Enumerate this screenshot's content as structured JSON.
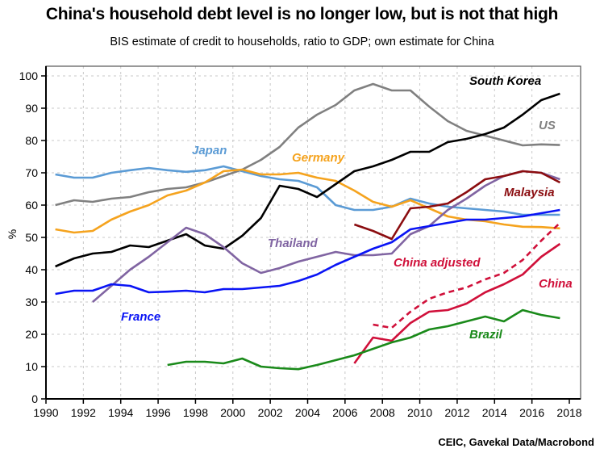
{
  "chart_data": {
    "type": "line",
    "title": "China's household debt level is no longer low, but is not that high",
    "subtitle": "BIS estimate of credit to households, ratio to GDP; own estimate for China",
    "source": "CEIC, Gavekal Data/Macrobond",
    "ylabel": "%",
    "xlabel": "",
    "xlim": [
      1990,
      2018
    ],
    "ylim": [
      0,
      100
    ],
    "x_ticks": [
      "1990",
      "1992",
      "1994",
      "1996",
      "1998",
      "2000",
      "2002",
      "2004",
      "2006",
      "2008",
      "2010",
      "2012",
      "2014",
      "2016",
      "2018"
    ],
    "y_ticks": [
      "0",
      "10",
      "20",
      "30",
      "40",
      "50",
      "60",
      "70",
      "80",
      "90",
      "100"
    ],
    "grid": true,
    "legend": "inline labels",
    "series": [
      {
        "name": "US",
        "color": "#808080",
        "dashed": false,
        "x_start": 1990.5,
        "values": [
          60,
          61.5,
          61,
          62,
          62.5,
          64,
          65,
          65.5,
          67,
          69,
          71,
          74,
          78,
          84,
          88,
          91,
          95.5,
          97.5,
          95.5,
          95.5,
          90.5,
          86,
          83,
          81.5,
          80,
          78.5,
          78.8,
          78.6
        ]
      },
      {
        "name": "Japan",
        "color": "#5b9bd5",
        "dashed": false,
        "x_start": 1990.5,
        "values": [
          69.5,
          68.5,
          68.5,
          70,
          70.8,
          71.5,
          70.8,
          70.3,
          70.8,
          72,
          70.5,
          69,
          68,
          67.5,
          65.5,
          60,
          58.5,
          58.5,
          59.5,
          62,
          60.5,
          59.5,
          59,
          58.5,
          58,
          57,
          57,
          57
        ]
      },
      {
        "name": "Germany",
        "color": "#f5a31e",
        "dashed": false,
        "x_start": 1990.5,
        "values": [
          52.5,
          51.5,
          52,
          55.5,
          58,
          60,
          63,
          64.5,
          67,
          70.5,
          71,
          69.5,
          69.5,
          70,
          68.5,
          67.5,
          64.5,
          61,
          59.5,
          61.5,
          59,
          56.5,
          55.5,
          55,
          54,
          53.3,
          53.2,
          52.8
        ]
      },
      {
        "name": "South Korea",
        "color": "#000000",
        "dashed": false,
        "x_start": 1990.5,
        "values": [
          41,
          43.5,
          45,
          45.5,
          47.5,
          47,
          49,
          51,
          47.5,
          46.5,
          50.5,
          56,
          66,
          65,
          62.5,
          66.5,
          70.5,
          72,
          74,
          76.5,
          76.5,
          79.5,
          80.5,
          82,
          84,
          88,
          92.5,
          94.5
        ]
      },
      {
        "name": "Thailand",
        "color": "#8064a2",
        "dashed": false,
        "x_start": 1992.5,
        "values": [
          30,
          35,
          40,
          44,
          48.5,
          53,
          51,
          47,
          42,
          39,
          40.5,
          42.5,
          44,
          45.5,
          44.5,
          44.5,
          45,
          51,
          53.5,
          58.5,
          62,
          66,
          69,
          70.5,
          70,
          68
        ]
      },
      {
        "name": "France",
        "color": "#0a14f5",
        "dashed": false,
        "x_start": 1990.5,
        "values": [
          32.5,
          33.5,
          33.5,
          35.5,
          35,
          33,
          33.2,
          33.5,
          33,
          34,
          34,
          34.5,
          35,
          36.5,
          38.5,
          41.5,
          44,
          46.5,
          48.5,
          52.5,
          53.5,
          54.5,
          55.5,
          55.5,
          56,
          56.5,
          57.5,
          58.5
        ]
      },
      {
        "name": "Malaysia",
        "color": "#8b0d10",
        "dashed": false,
        "x_start": 2006.5,
        "values": [
          54,
          52,
          49.5,
          59,
          59.5,
          60.5,
          64,
          68,
          69,
          70.5,
          70,
          67
        ]
      },
      {
        "name": "China adjusted",
        "color": "#d0103a",
        "dashed": true,
        "x_start": 2007.5,
        "values": [
          23,
          22,
          27,
          31,
          33,
          34.5,
          37,
          39,
          43,
          49,
          54.5
        ]
      },
      {
        "name": "China",
        "color": "#d0103a",
        "dashed": false,
        "x_start": 2006.5,
        "values": [
          11,
          19,
          18,
          23.5,
          27,
          27.5,
          29.5,
          33,
          35.5,
          38.5,
          44,
          48
        ]
      },
      {
        "name": "Brazil",
        "color": "#1a8a1a",
        "dashed": false,
        "x_start": 1996.5,
        "values": [
          10.5,
          11.5,
          11.5,
          11,
          12.5,
          10,
          9.5,
          9.2,
          10.5,
          12,
          13.5,
          15.5,
          17.5,
          19,
          21.5,
          22.5,
          24,
          25.5,
          24,
          27.5,
          26,
          25
        ]
      }
    ]
  }
}
